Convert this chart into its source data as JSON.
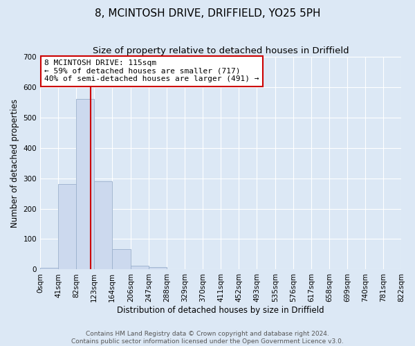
{
  "title": "8, MCINTOSH DRIVE, DRIFFIELD, YO25 5PH",
  "subtitle": "Size of property relative to detached houses in Driffield",
  "xlabel": "Distribution of detached houses by size in Driffield",
  "ylabel": "Number of detached properties",
  "bin_edges": [
    0,
    41,
    82,
    123,
    164,
    206,
    247,
    288,
    329,
    370,
    411,
    452,
    493,
    535,
    576,
    617,
    658,
    699,
    740,
    781,
    822
  ],
  "bin_labels": [
    "0sqm",
    "41sqm",
    "82sqm",
    "123sqm",
    "164sqm",
    "206sqm",
    "247sqm",
    "288sqm",
    "329sqm",
    "370sqm",
    "411sqm",
    "452sqm",
    "493sqm",
    "535sqm",
    "576sqm",
    "617sqm",
    "658sqm",
    "699sqm",
    "740sqm",
    "781sqm",
    "822sqm"
  ],
  "counts": [
    5,
    280,
    560,
    290,
    68,
    13,
    8,
    0,
    0,
    0,
    0,
    0,
    0,
    0,
    0,
    0,
    0,
    0,
    0,
    0
  ],
  "bar_color": "#ccd9ee",
  "bar_edge_color": "#9ab0cc",
  "property_line_x": 115,
  "property_line_color": "#cc0000",
  "annotation_text": "8 MCINTOSH DRIVE: 115sqm\n← 59% of detached houses are smaller (717)\n40% of semi-detached houses are larger (491) →",
  "annotation_box_color": "#ffffff",
  "annotation_box_edge_color": "#cc0000",
  "ylim": [
    0,
    700
  ],
  "yticks": [
    0,
    100,
    200,
    300,
    400,
    500,
    600,
    700
  ],
  "footer_line1": "Contains HM Land Registry data © Crown copyright and database right 2024.",
  "footer_line2": "Contains public sector information licensed under the Open Government Licence v3.0.",
  "background_color": "#dce8f5",
  "plot_bg_color": "#dce8f5",
  "grid_color": "#ffffff",
  "title_fontsize": 11,
  "subtitle_fontsize": 9.5,
  "axis_label_fontsize": 8.5,
  "tick_fontsize": 7.5,
  "annotation_fontsize": 8,
  "footer_fontsize": 6.5
}
